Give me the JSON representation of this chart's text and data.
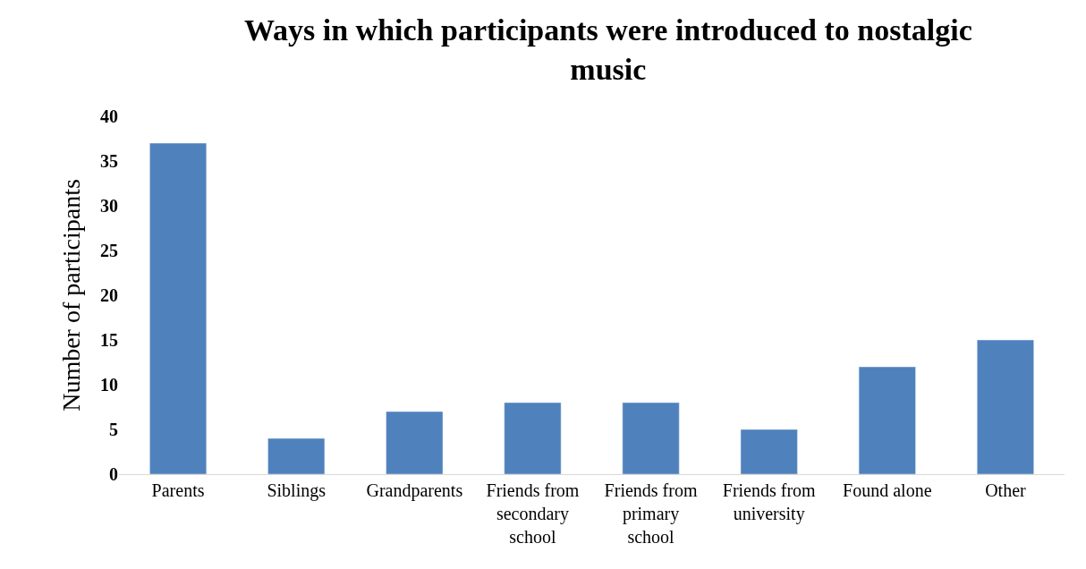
{
  "chart_data": {
    "type": "bar",
    "title": "Ways in which participants were introduced to nostalgic music",
    "ylabel": "Number of participants",
    "categories": [
      "Parents",
      "Siblings",
      "Grandparents",
      "Friends from secondary school",
      "Friends from primary school",
      "Friends from university",
      "Found alone",
      "Other"
    ],
    "values": [
      37,
      4,
      7,
      8,
      8,
      5,
      12,
      15
    ],
    "color": "#4f81bd",
    "ylim": [
      0,
      40
    ],
    "yticks": [
      0,
      5,
      10,
      15,
      20,
      25,
      30,
      35,
      40
    ]
  }
}
